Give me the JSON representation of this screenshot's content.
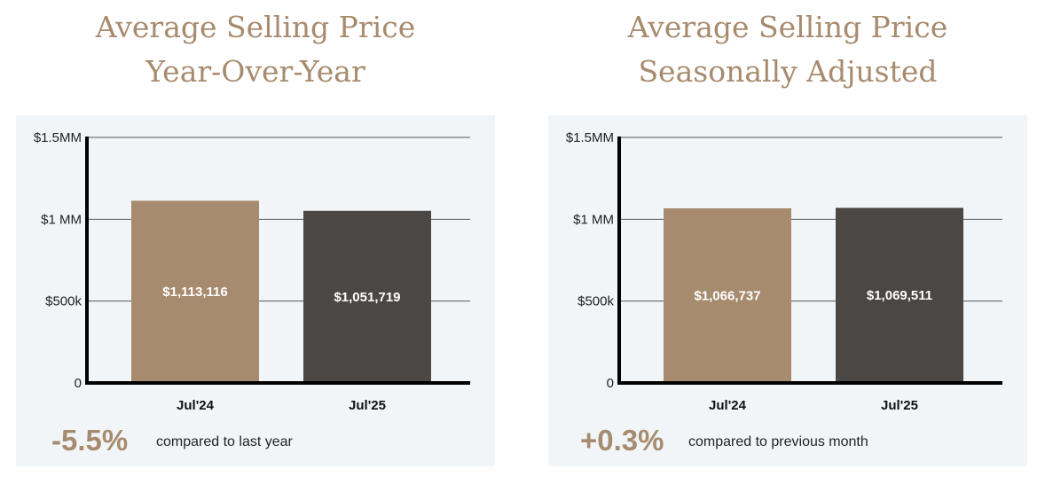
{
  "chart_data": [
    {
      "type": "bar",
      "title_line1": "Average Selling Price",
      "title_line2": "Year-Over-Year",
      "categories": [
        "Jul'24",
        "Jul'25"
      ],
      "values": [
        1113116,
        1051719
      ],
      "value_labels": [
        "$1,113,116",
        "$1,051,719"
      ],
      "ylim": [
        0,
        1500000
      ],
      "yticks": [
        0,
        500000,
        1000000,
        1500000
      ],
      "ytick_labels": [
        "0",
        "$500k",
        "$1 MM",
        "$1.5MM"
      ],
      "grid": true,
      "change_value": "-5.5%",
      "change_text": "compared to last year"
    },
    {
      "type": "bar",
      "title_line1": "Average Selling Price",
      "title_line2": "Seasonally Adjusted",
      "categories": [
        "Jul'24",
        "Jul'25"
      ],
      "values": [
        1066737,
        1069511
      ],
      "value_labels": [
        "$1,066,737",
        "$1,069,511"
      ],
      "ylim": [
        0,
        1500000
      ],
      "yticks": [
        0,
        500000,
        1000000,
        1500000
      ],
      "ytick_labels": [
        "0",
        "$500k",
        "$1 MM",
        "$1.5MM"
      ],
      "grid": true,
      "change_value": "+0.3%",
      "change_text": "compared to previous month"
    }
  ],
  "colors": {
    "accent": "#a78b6e",
    "bar1": "#a78b6e",
    "bar2": "#4a4744",
    "panel_bg": "#f2f5f8",
    "axis": "#000000"
  }
}
